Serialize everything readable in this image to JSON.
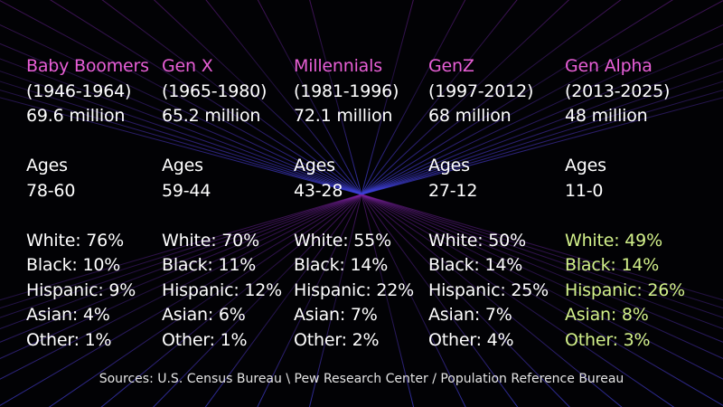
{
  "colors": {
    "generation_name": "#e85fd6",
    "text": "#ffffff",
    "highlight": "#d2f08a",
    "grid_purple": "#7a1f9c",
    "grid_blue": "#3b3fd8"
  },
  "generations": [
    {
      "name": "Baby Boomers",
      "years": "(1946-1964)",
      "population": "69.6 million",
      "ages_label": "Ages",
      "ages": "78-60",
      "stats": [
        "White: 76%",
        "Black: 10%",
        "Hispanic: 9%",
        "Asian: 4%",
        "Other: 1%"
      ],
      "highlight": false
    },
    {
      "name": "Gen X",
      "years": "(1965-1980)",
      "population": "65.2 million",
      "ages_label": "Ages",
      "ages": "59-44",
      "stats": [
        "White: 70%",
        "Black: 11%",
        "Hispanic: 12%",
        "Asian: 6%",
        "Other: 1%"
      ],
      "highlight": false
    },
    {
      "name": "Millennials",
      "years": "(1981-1996)",
      "population": "72.1 million",
      "ages_label": "Ages",
      "ages": "43-28",
      "stats": [
        "White: 55%",
        "Black: 14%",
        "Hispanic: 22%",
        "Asian: 7%",
        "Other: 2%"
      ],
      "highlight": false
    },
    {
      "name": "GenZ",
      "years": "(1997-2012)",
      "population": "68 million",
      "ages_label": "Ages",
      "ages": "27-12",
      "stats": [
        "White: 50%",
        "Black: 14%",
        "Hispanic: 25%",
        "Asian: 7%",
        "Other: 4%"
      ],
      "highlight": false
    },
    {
      "name": "Gen Alpha",
      "years": "(2013-2025)",
      "population": "48 million",
      "ages_label": "Ages",
      "ages": "11-0",
      "stats": [
        "White: 49%",
        "Black: 14%",
        "Hispanic: 26%",
        "Asian: 8%",
        "Other: 3%"
      ],
      "highlight": true
    }
  ],
  "sources": "Sources: U.S. Census Bureau \\ Pew Research Center / Population Reference Bureau"
}
